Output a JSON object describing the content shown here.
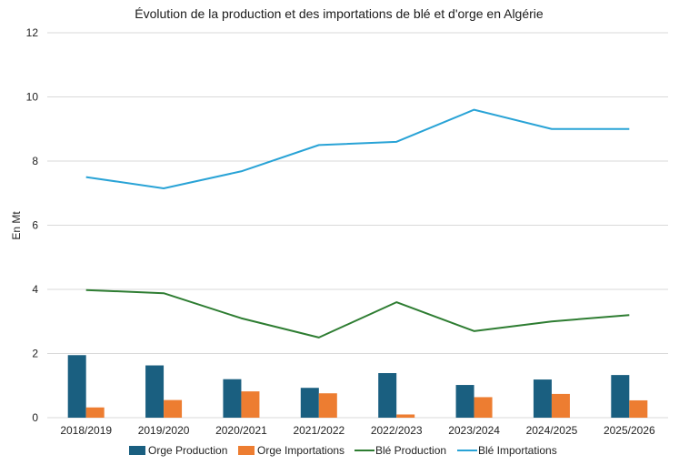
{
  "chart_data": {
    "type": "bar",
    "title": "Évolution de la production et des importations de blé et d'orge en Algérie",
    "xlabel": "",
    "ylabel": "En Mt",
    "ylim": [
      0,
      12
    ],
    "yticks": [
      0,
      2,
      4,
      6,
      8,
      10,
      12
    ],
    "grid": true,
    "legend": "bottom",
    "categories": [
      "2018/2019",
      "2019/2020",
      "2020/2021",
      "2021/2022",
      "2022/2023",
      "2023/2024",
      "2024/2025",
      "2025/2026"
    ],
    "series": [
      {
        "name": "Orge Production",
        "type": "bar",
        "color": "#1a5f80",
        "values": [
          1.95,
          1.63,
          1.2,
          0.93,
          1.39,
          1.02,
          1.19,
          1.33
        ]
      },
      {
        "name": "Orge Importations",
        "type": "bar",
        "color": "#ed7d31",
        "values": [
          0.32,
          0.55,
          0.82,
          0.76,
          0.1,
          0.64,
          0.74,
          0.54
        ]
      },
      {
        "name": "Blé Production",
        "type": "line",
        "color": "#2e7d32",
        "values": [
          3.98,
          3.88,
          3.1,
          2.5,
          3.6,
          2.7,
          3.0,
          3.2
        ]
      },
      {
        "name": "Blé Importations",
        "type": "line",
        "color": "#29a3d6",
        "values": [
          7.5,
          7.15,
          7.68,
          8.5,
          8.6,
          9.6,
          9.0,
          9.0
        ]
      }
    ]
  }
}
